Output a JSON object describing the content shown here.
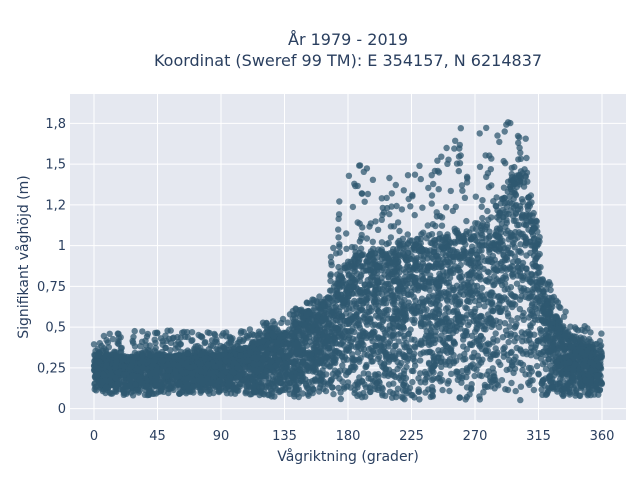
{
  "chart_data": {
    "type": "scatter",
    "title_line1": "År 1979 - 2019",
    "title_line2": "Koordinat (Sweref 99 TM): E 354157, N 6214837",
    "xlabel": "Vågriktning (grader)",
    "ylabel": "Signifikant våghöjd (m)",
    "xlim": [
      -17,
      377
    ],
    "ylim": [
      -0.07,
      1.93
    ],
    "grid": true,
    "x_ticks": [
      0,
      45,
      90,
      135,
      180,
      225,
      270,
      315,
      360
    ],
    "x_tick_labels": [
      "0",
      "45",
      "90",
      "135",
      "180",
      "225",
      "270",
      "315",
      "360"
    ],
    "y_ticks": [
      0,
      0.25,
      0.5,
      0.75,
      1,
      1.25,
      1.5,
      1.75
    ],
    "y_tick_labels": [
      "0",
      "0,25",
      "0,5",
      "0,75",
      "1",
      "1,2",
      "1,5",
      "1,8"
    ],
    "colors": {
      "marker": "#2f5870",
      "plot_bg": "#e5e8f0",
      "grid": "#ffffff",
      "text": "#2a3f5f"
    },
    "marker_opacity": 0.75,
    "series": [
      {
        "envelope": {
          "direction_deg": [
            0,
            20,
            45,
            90,
            110,
            130,
            150,
            165,
            175,
            185,
            200,
            225,
            250,
            270,
            285,
            295,
            305,
            315,
            325,
            340,
            360
          ],
          "typical_lower_m": [
            0.1,
            0.08,
            0.08,
            0.09,
            0.08,
            0.07,
            0.06,
            0.05,
            0.05,
            0.05,
            0.05,
            0.05,
            0.05,
            0.05,
            0.05,
            0.05,
            0.05,
            0.06,
            0.06,
            0.07,
            0.08
          ],
          "typical_upper_m": [
            0.33,
            0.32,
            0.33,
            0.33,
            0.38,
            0.45,
            0.56,
            0.67,
            0.82,
            0.94,
            0.95,
            1.0,
            1.05,
            1.08,
            1.2,
            1.4,
            1.45,
            0.9,
            0.6,
            0.42,
            0.35
          ],
          "outlier_max_m": [
            0.45,
            0.48,
            0.49,
            0.47,
            0.5,
            0.56,
            0.65,
            0.74,
            1.45,
            1.58,
            1.4,
            1.49,
            1.68,
            1.82,
            1.87,
            1.85,
            1.75,
            1.1,
            0.7,
            0.55,
            0.46
          ]
        }
      }
    ]
  }
}
